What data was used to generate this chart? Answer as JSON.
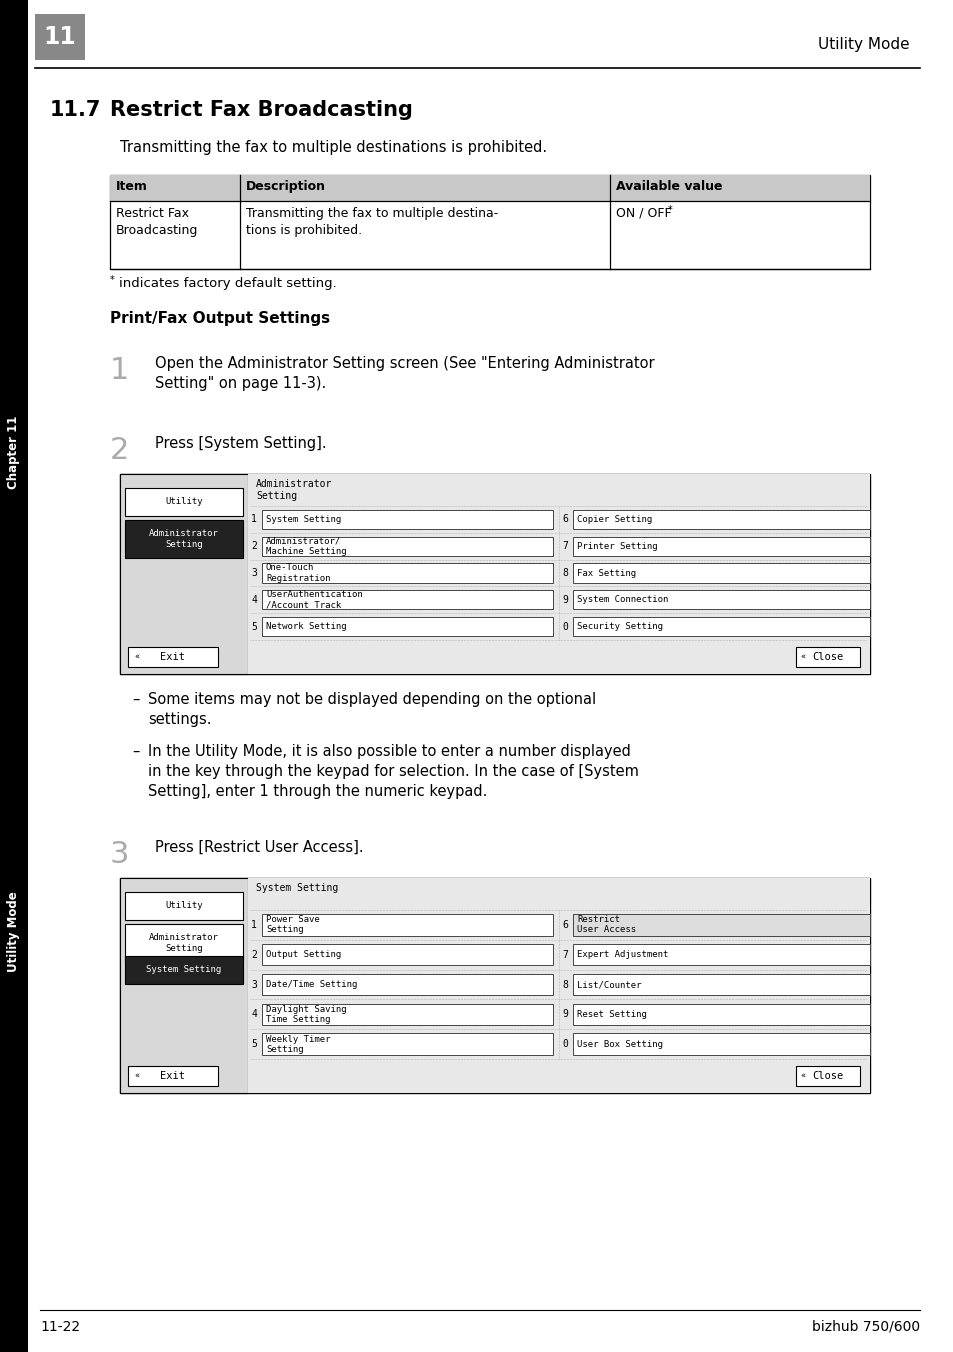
{
  "page_bg": "#ffffff",
  "chapter_box_color": "#888888",
  "chapter_number": "11",
  "header_text": "Utility Mode",
  "section_number": "11.7",
  "section_title": "Restrict Fax Broadcasting",
  "section_intro": "Transmitting the fax to multiple destinations is prohibited.",
  "table_header_bg": "#cccccc",
  "table_cols": [
    "Item",
    "Description",
    "Available value"
  ],
  "table_row_col1": "Restrict Fax\nBroadcasting",
  "table_row_col2": "Transmitting the fax to multiple destina-\ntions is prohibited.",
  "table_row_col3": "ON / OFF",
  "factory_note": "indicates factory default setting.",
  "subsection_title": "Print/Fax Output Settings",
  "step1_num": "1",
  "step1_text": "Open the Administrator Setting screen (See \"Entering Administrator\nSetting\" on page 11-3).",
  "step2_num": "2",
  "step2_text": "Press [System Setting].",
  "step3_num": "3",
  "step3_text": "Press [Restrict User Access].",
  "bullet1": "Some items may not be displayed depending on the optional\nsettings.",
  "bullet2": "In the Utility Mode, it is also possible to enter a number displayed\nin the key through the keypad for selection. In the case of [System\nSetting], enter 1 through the numeric keypad.",
  "footer_left": "11-22",
  "footer_right": "bizhub 750/600",
  "sidebar_chapter": "Chapter 11",
  "sidebar_mode": "Utility Mode",
  "scr1_title": "Administrator\nSetting",
  "scr1_lp": [
    "Utility",
    "Administrator\nSetting"
  ],
  "scr1_lp_selected": 1,
  "scr1_btns_left": [
    {
      "num": "1",
      "label": "System Setting"
    },
    {
      "num": "2",
      "label": "Administrator/\nMachine Setting"
    },
    {
      "num": "3",
      "label": "One-Touch\nRegistration"
    },
    {
      "num": "4",
      "label": "UserAuthentication\n/Account Track"
    },
    {
      "num": "5",
      "label": "Network Setting"
    }
  ],
  "scr1_btns_right": [
    {
      "num": "6",
      "label": "Copier Setting"
    },
    {
      "num": "7",
      "label": "Printer Setting"
    },
    {
      "num": "8",
      "label": "Fax Setting"
    },
    {
      "num": "9",
      "label": "System Connection"
    },
    {
      "num": "0",
      "label": "Security Setting"
    }
  ],
  "scr2_title": "System Setting",
  "scr2_lp": [
    "Utility",
    "Administrator\nSetting",
    "System Setting"
  ],
  "scr2_lp_selected": 2,
  "scr2_btns_left": [
    {
      "num": "1",
      "label": "Power Save\nSetting"
    },
    {
      "num": "2",
      "label": "Output Setting"
    },
    {
      "num": "3",
      "label": "Date/Time Setting"
    },
    {
      "num": "4",
      "label": "Daylight Saving\nTime Setting"
    },
    {
      "num": "5",
      "label": "Weekly Timer\nSetting"
    }
  ],
  "scr2_btns_right": [
    {
      "num": "6",
      "label": "Restrict\nUser Access",
      "highlight": true
    },
    {
      "num": "7",
      "label": "Expert Adjustment",
      "highlight": false
    },
    {
      "num": "8",
      "label": "List/Counter",
      "highlight": false
    },
    {
      "num": "9",
      "label": "Reset Setting",
      "highlight": false
    },
    {
      "num": "0",
      "label": "User Box Setting",
      "highlight": false
    }
  ]
}
